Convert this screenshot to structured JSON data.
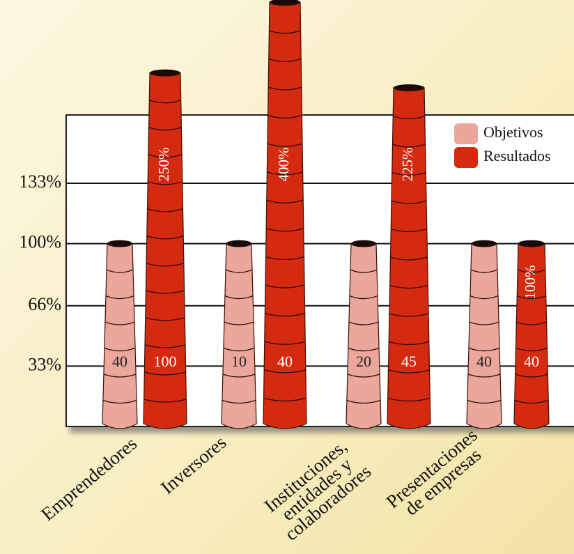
{
  "chart_data": {
    "type": "bar",
    "categories": [
      "Emprendedores",
      "Inversores",
      "Instituciones, entidades y colaboradores",
      "Presentaciones de empresas"
    ],
    "series": [
      {
        "name": "Objetivos",
        "color": "#eba79b",
        "values": [
          100,
          100,
          100,
          100
        ],
        "counts": [
          40,
          10,
          20,
          40
        ]
      },
      {
        "name": "Resultados",
        "color": "#d42a10",
        "values": [
          250,
          400,
          225,
          100
        ],
        "value_labels": [
          "250%",
          "400%",
          "225%",
          "100%"
        ],
        "counts": [
          100,
          40,
          45,
          40
        ]
      }
    ],
    "ylim": [
      0,
      133
    ],
    "yticks": [
      {
        "value": 33,
        "label": "33%"
      },
      {
        "value": 66,
        "label": "66%"
      },
      {
        "value": 100,
        "label": "100%"
      },
      {
        "value": 133,
        "label": "133%"
      }
    ],
    "grid": true,
    "legend": "top-right"
  }
}
